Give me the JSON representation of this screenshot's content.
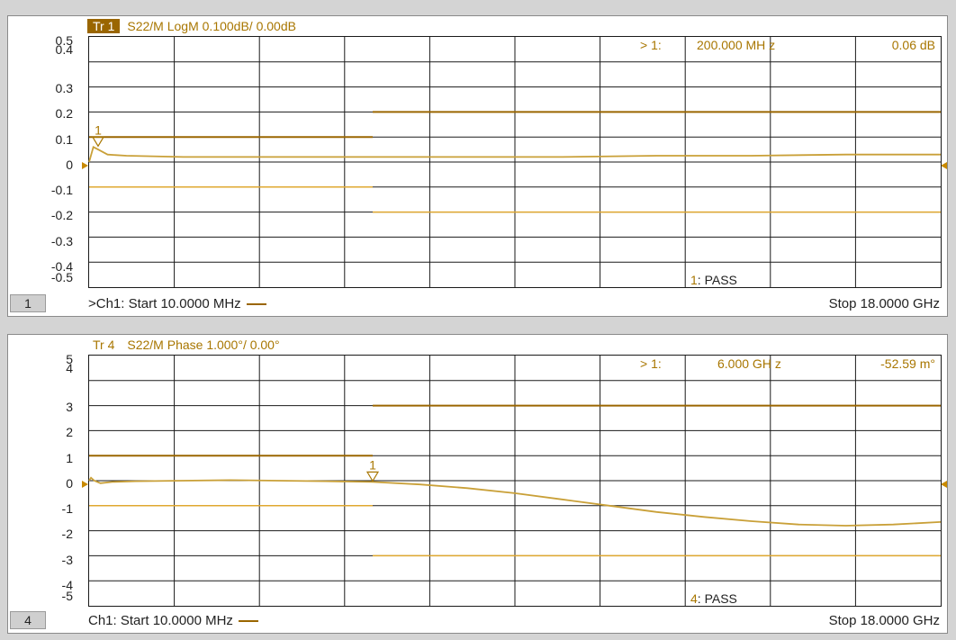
{
  "colors": {
    "trace": "#c9a038",
    "limit": "#9a6600",
    "limit_light": "#e0a830",
    "grid": "#1a1a1a",
    "text": "#a87600"
  },
  "window1": {
    "trace_label": "Tr 1",
    "title": "S22/M LogM 0.100dB/  0.00dB",
    "y_labels": [
      "0.5",
      "0.4",
      "0.3",
      "0.2",
      "0.1",
      "0",
      "-0.1",
      "-0.2",
      "-0.3",
      "-0.4",
      "-0.5"
    ],
    "marker": {
      "prefix": "> 1:",
      "freq": "200.000  MH z",
      "value": "0.06 dB",
      "label": "1"
    },
    "pass": {
      "num": "1",
      "text": ": PASS"
    },
    "channel_num": "1",
    "start": ">Ch1:  Start  10.0000 MHz",
    "stop": "Stop  18.0000 GHz",
    "chart_data": {
      "type": "line",
      "xlim": [
        0.01,
        18
      ],
      "ylim": [
        -0.5,
        0.5
      ],
      "x_unit": "GHz",
      "y_unit": "dB",
      "trace": {
        "x": [
          0.01,
          0.1,
          0.2,
          0.4,
          0.8,
          2,
          4,
          6,
          8,
          10,
          12,
          14,
          16,
          18
        ],
        "y": [
          0.0,
          0.06,
          0.05,
          0.03,
          0.025,
          0.02,
          0.02,
          0.02,
          0.02,
          0.02,
          0.025,
          0.025,
          0.03,
          0.03
        ]
      },
      "upper_limits": [
        {
          "x": [
            0.01,
            6.0
          ],
          "y": 0.1
        },
        {
          "x": [
            6.0,
            18
          ],
          "y": 0.2
        }
      ],
      "lower_limits": [
        {
          "x": [
            0.01,
            6.0
          ],
          "y": -0.1
        },
        {
          "x": [
            6.0,
            18
          ],
          "y": -0.2
        }
      ],
      "marker": {
        "x": 0.2,
        "y": 0.06
      }
    }
  },
  "window2": {
    "trace_label": "Tr 4",
    "title": "S22/M Phase 1.000°/  0.00°",
    "y_labels": [
      "5",
      "4",
      "3",
      "2",
      "1",
      "0",
      "-1",
      "-2",
      "-3",
      "-4",
      "-5"
    ],
    "marker": {
      "prefix": "> 1:",
      "freq": "6.000  GH z",
      "value": "-52.59 m°",
      "label": "1"
    },
    "pass": {
      "num": "4",
      "text": ": PASS"
    },
    "channel_num": "4",
    "start": "Ch1:  Start  10.0000 MHz",
    "stop": "Stop  18.0000 GHz",
    "chart_data": {
      "type": "line",
      "xlim": [
        0.01,
        18
      ],
      "ylim": [
        -5,
        5
      ],
      "x_unit": "GHz",
      "y_unit": "deg",
      "trace": {
        "x": [
          0.01,
          0.05,
          0.12,
          0.25,
          0.5,
          1,
          2,
          3,
          4,
          5,
          6,
          7,
          8,
          9,
          10,
          11,
          12,
          13,
          14,
          15,
          16,
          17,
          18
        ],
        "y": [
          0.0,
          0.12,
          0.0,
          -0.1,
          -0.05,
          -0.02,
          0.0,
          0.02,
          0.0,
          -0.02,
          -0.05,
          -0.15,
          -0.3,
          -0.5,
          -0.75,
          -1.0,
          -1.25,
          -1.45,
          -1.62,
          -1.75,
          -1.8,
          -1.75,
          -1.65
        ]
      },
      "upper_limits": [
        {
          "x": [
            0.01,
            6.0
          ],
          "y": 1
        },
        {
          "x": [
            6.0,
            18
          ],
          "y": 3
        }
      ],
      "lower_limits": [
        {
          "x": [
            0.01,
            6.0
          ],
          "y": -1
        },
        {
          "x": [
            6.0,
            18
          ],
          "y": -3
        }
      ],
      "marker": {
        "x": 6.0,
        "y": -0.05
      }
    }
  }
}
